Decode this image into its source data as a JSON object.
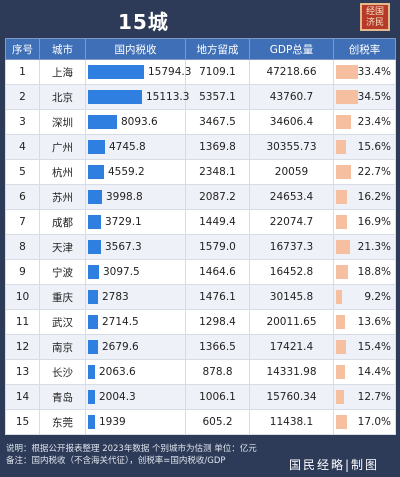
{
  "title": "15城",
  "seal_text": "经国济民",
  "columns": [
    "序号",
    "城市",
    "国内税收",
    "地方留成",
    "GDP总量",
    "创税率"
  ],
  "rows": [
    {
      "rank": "1",
      "city": "上海",
      "tax": "15794.3",
      "tax_val": 15794.3,
      "local": "7109.1",
      "gdp": "47218.66",
      "rate": "33.4%",
      "rate_val": 33.4
    },
    {
      "rank": "2",
      "city": "北京",
      "tax": "15113.3",
      "tax_val": 15113.3,
      "local": "5357.1",
      "gdp": "43760.7",
      "rate": "34.5%",
      "rate_val": 34.5
    },
    {
      "rank": "3",
      "city": "深圳",
      "tax": "8093.6",
      "tax_val": 8093.6,
      "local": "3467.5",
      "gdp": "34606.4",
      "rate": "23.4%",
      "rate_val": 23.4
    },
    {
      "rank": "4",
      "city": "广州",
      "tax": "4745.8",
      "tax_val": 4745.8,
      "local": "1369.8",
      "gdp": "30355.73",
      "rate": "15.6%",
      "rate_val": 15.6
    },
    {
      "rank": "5",
      "city": "杭州",
      "tax": "4559.2",
      "tax_val": 4559.2,
      "local": "2348.1",
      "gdp": "20059",
      "rate": "22.7%",
      "rate_val": 22.7
    },
    {
      "rank": "6",
      "city": "苏州",
      "tax": "3998.8",
      "tax_val": 3998.8,
      "local": "2087.2",
      "gdp": "24653.4",
      "rate": "16.2%",
      "rate_val": 16.2
    },
    {
      "rank": "7",
      "city": "成都",
      "tax": "3729.1",
      "tax_val": 3729.1,
      "local": "1449.4",
      "gdp": "22074.7",
      "rate": "16.9%",
      "rate_val": 16.9
    },
    {
      "rank": "8",
      "city": "天津",
      "tax": "3567.3",
      "tax_val": 3567.3,
      "local": "1579.0",
      "gdp": "16737.3",
      "rate": "21.3%",
      "rate_val": 21.3
    },
    {
      "rank": "9",
      "city": "宁波",
      "tax": "3097.5",
      "tax_val": 3097.5,
      "local": "1464.6",
      "gdp": "16452.8",
      "rate": "18.8%",
      "rate_val": 18.8
    },
    {
      "rank": "10",
      "city": "重庆",
      "tax": "2783",
      "tax_val": 2783,
      "local": "1476.1",
      "gdp": "30145.8",
      "rate": "9.2%",
      "rate_val": 9.2
    },
    {
      "rank": "11",
      "city": "武汉",
      "tax": "2714.5",
      "tax_val": 2714.5,
      "local": "1298.4",
      "gdp": "20011.65",
      "rate": "13.6%",
      "rate_val": 13.6
    },
    {
      "rank": "12",
      "city": "南京",
      "tax": "2679.6",
      "tax_val": 2679.6,
      "local": "1366.5",
      "gdp": "17421.4",
      "rate": "15.4%",
      "rate_val": 15.4
    },
    {
      "rank": "13",
      "city": "长沙",
      "tax": "2063.6",
      "tax_val": 2063.6,
      "local": "878.8",
      "gdp": "14331.98",
      "rate": "14.4%",
      "rate_val": 14.4
    },
    {
      "rank": "14",
      "city": "青岛",
      "tax": "2004.3",
      "tax_val": 2004.3,
      "local": "1006.1",
      "gdp": "15760.34",
      "rate": "12.7%",
      "rate_val": 12.7
    },
    {
      "rank": "15",
      "city": "东莞",
      "tax": "1939",
      "tax_val": 1939,
      "local": "605.2",
      "gdp": "11438.1",
      "rate": "17.0%",
      "rate_val": 17.0
    }
  ],
  "notes": {
    "line1": "说明：根据公开报表整理 2023年数据 个别城市为估测  单位：亿元",
    "line2": "备注：国内税收（不含海关代征），创税率=国内税收/GDP"
  },
  "brand": "国民经略|制图",
  "colors": {
    "header": "#3f6fb7",
    "tax_bar": "#2f7fe0",
    "rate_bar": "#f6bfa0",
    "background": "#2d3b58"
  }
}
